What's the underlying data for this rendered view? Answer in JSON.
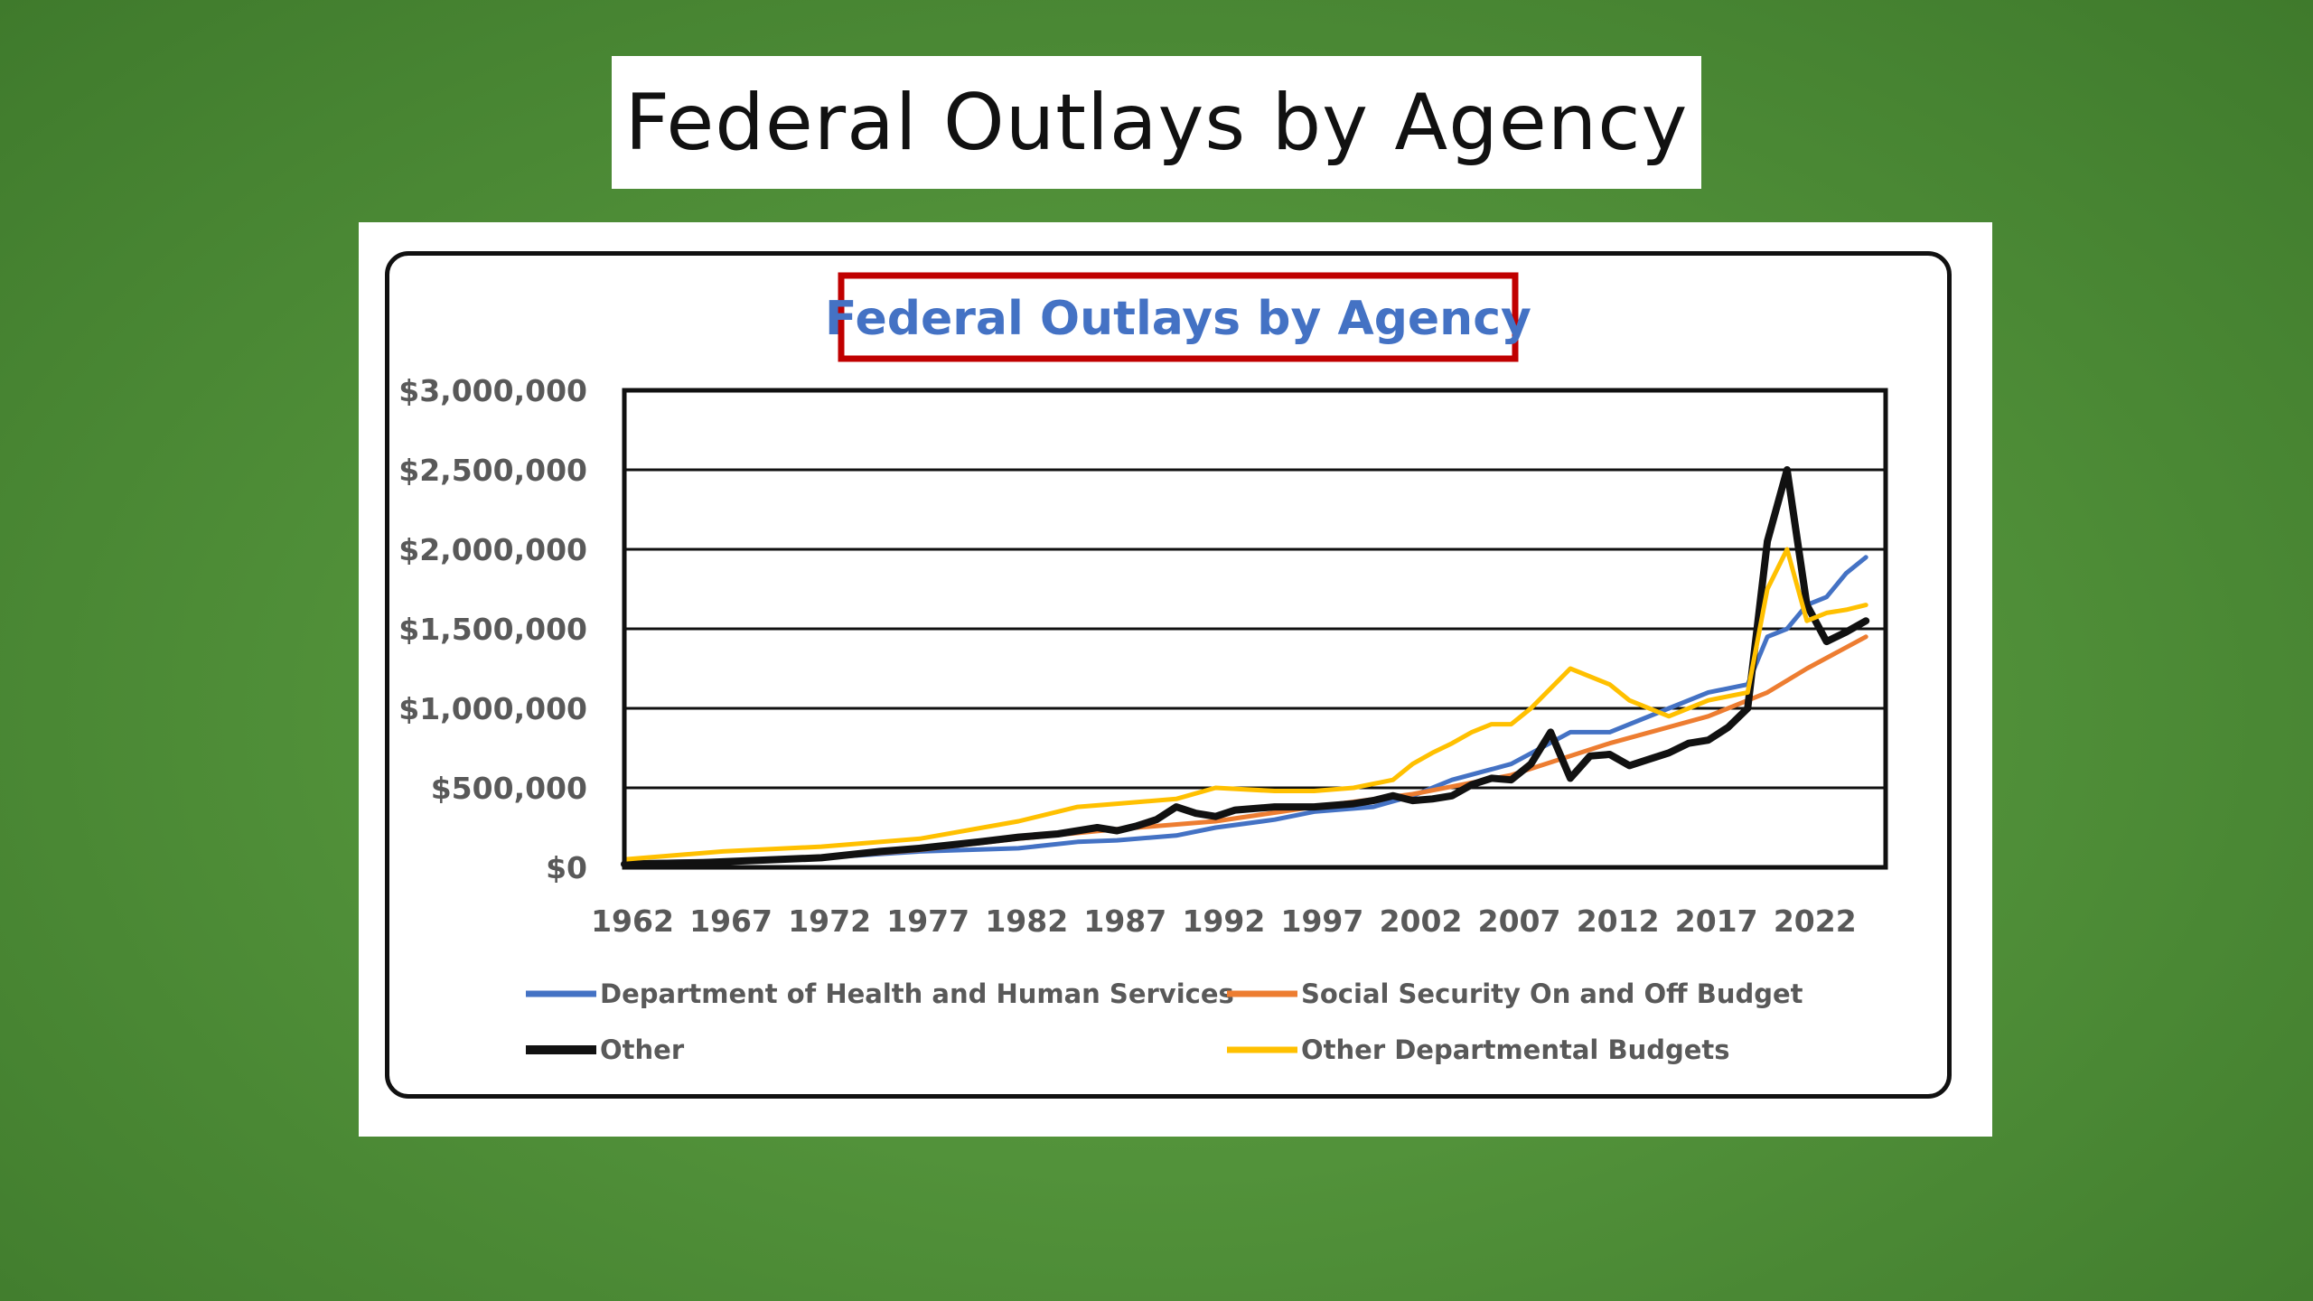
{
  "slide": {
    "title": "Federal Outlays by Agency"
  },
  "chart_data": {
    "type": "line",
    "title": "Federal Outlays by Agency",
    "xlabel": "",
    "ylabel": "",
    "xlim": [
      1962,
      2026
    ],
    "ylim": [
      0,
      3000000
    ],
    "y_ticks": [
      0,
      500000,
      1000000,
      1500000,
      2000000,
      2500000,
      3000000
    ],
    "y_tick_labels": [
      "$0",
      "$500,000",
      "$1,000,000",
      "$1,500,000",
      "$2,000,000",
      "$2,500,000",
      "$3,000,000"
    ],
    "x_ticks": [
      1962,
      1967,
      1972,
      1977,
      1982,
      1987,
      1992,
      1997,
      2002,
      2007,
      2012,
      2017,
      2022
    ],
    "x_tick_labels": [
      "1962",
      "1967",
      "1972",
      "1977",
      "1982",
      "1987",
      "1992",
      "1997",
      "2002",
      "2007",
      "2012",
      "2017",
      "2022"
    ],
    "grid": true,
    "legend_position": "bottom",
    "series": [
      {
        "name": "Department of Health and Human Services",
        "color": "#4472c4",
        "width": 5,
        "x": [
          1962,
          1967,
          1972,
          1977,
          1982,
          1985,
          1987,
          1990,
          1992,
          1995,
          1997,
          2000,
          2002,
          2004,
          2007,
          2010,
          2012,
          2015,
          2017,
          2019,
          2020,
          2021,
          2022,
          2023,
          2024,
          2025
        ],
        "values": [
          30000,
          40000,
          60000,
          100000,
          120000,
          160000,
          170000,
          200000,
          250000,
          300000,
          350000,
          380000,
          450000,
          550000,
          650000,
          850000,
          850000,
          1000000,
          1100000,
          1150000,
          1450000,
          1500000,
          1650000,
          1700000,
          1850000,
          1950000
        ]
      },
      {
        "name": "Social Security On and Off Budget",
        "color": "#ed7d31",
        "width": 5,
        "x": [
          1962,
          1967,
          1972,
          1977,
          1982,
          1987,
          1992,
          1997,
          2002,
          2007,
          2012,
          2017,
          2020,
          2022,
          2025
        ],
        "values": [
          15000,
          30000,
          60000,
          110000,
          180000,
          240000,
          290000,
          380000,
          460000,
          580000,
          780000,
          950000,
          1100000,
          1250000,
          1450000
        ]
      },
      {
        "name": "Other",
        "color": "#111111",
        "width": 8,
        "x": [
          1962,
          1966,
          1972,
          1975,
          1977,
          1980,
          1982,
          1984,
          1986,
          1987,
          1988,
          1989,
          1990,
          1991,
          1992,
          1993,
          1995,
          1997,
          1999,
          2000,
          2001,
          2002,
          2003,
          2004,
          2005,
          2006,
          2007,
          2008,
          2009,
          2010,
          2011,
          2012,
          2013,
          2014,
          2015,
          2016,
          2017,
          2018,
          2019,
          2020,
          2021,
          2022,
          2023,
          2024,
          2025
        ],
        "values": [
          20000,
          30000,
          60000,
          100000,
          120000,
          160000,
          190000,
          210000,
          250000,
          230000,
          260000,
          300000,
          380000,
          340000,
          320000,
          360000,
          380000,
          380000,
          400000,
          420000,
          450000,
          420000,
          430000,
          450000,
          520000,
          560000,
          550000,
          650000,
          850000,
          560000,
          700000,
          710000,
          640000,
          680000,
          720000,
          780000,
          800000,
          880000,
          1000000,
          2050000,
          2500000,
          1650000,
          1420000,
          1480000,
          1550000
        ]
      },
      {
        "name": "Other Departmental Budgets",
        "color": "#ffc000",
        "width": 5,
        "x": [
          1962,
          1967,
          1972,
          1977,
          1982,
          1985,
          1987,
          1990,
          1992,
          1995,
          1997,
          1999,
          2001,
          2002,
          2003,
          2004,
          2005,
          2006,
          2007,
          2008,
          2010,
          2012,
          2013,
          2015,
          2017,
          2019,
          2020,
          2021,
          2022,
          2023,
          2024,
          2025
        ],
        "values": [
          50000,
          100000,
          130000,
          180000,
          290000,
          380000,
          400000,
          430000,
          500000,
          480000,
          480000,
          500000,
          550000,
          650000,
          720000,
          780000,
          850000,
          900000,
          900000,
          1000000,
          1250000,
          1150000,
          1050000,
          950000,
          1050000,
          1100000,
          1750000,
          2000000,
          1550000,
          1600000,
          1620000,
          1650000
        ]
      }
    ]
  }
}
